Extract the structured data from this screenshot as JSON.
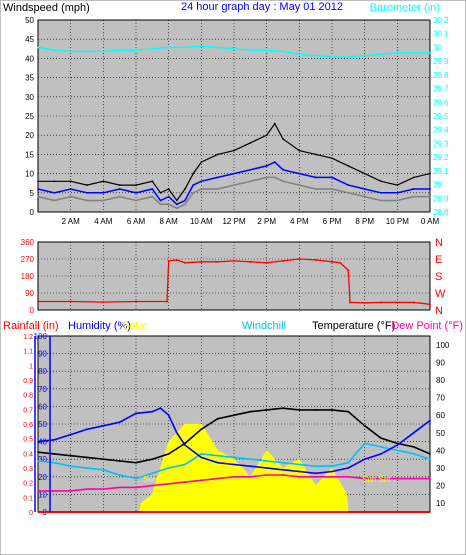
{
  "chart_data": [
    {
      "type": "line",
      "title": "24 hour graph day : May 01 2012",
      "ylabel": "Windspeed (mph)",
      "y2label": "Barometer (in)",
      "ylim": [
        0,
        50
      ],
      "y_ticks": [
        "0",
        "5",
        "10",
        "15",
        "20",
        "25",
        "30",
        "35",
        "40",
        "45",
        "50"
      ],
      "y2lim": [
        28.8,
        30.2
      ],
      "y2_ticks": [
        "28.8",
        "28.9",
        "29",
        "29.1",
        "29.2",
        "29.3",
        "29.4",
        "29.5",
        "29.6",
        "29.7",
        "29.8",
        "29.9",
        "30",
        "30.1",
        "30.2"
      ],
      "xlim": [
        0,
        24
      ],
      "x_ticks": [
        "2 AM",
        "4 AM",
        "6 AM",
        "8 AM",
        "10 AM",
        "12 PM",
        "2 PM",
        "4 PM",
        "6 PM",
        "8 PM",
        "10 PM",
        "0 AM"
      ],
      "grid": true,
      "colors": {
        "gust": "#000000",
        "average": "#0000ff",
        "wind": "#808080",
        "barometer": "#00ffff"
      },
      "series": [
        {
          "name": "gust",
          "axis": "left",
          "x": [
            0,
            1,
            2,
            3,
            4,
            5,
            6,
            7,
            7.5,
            8,
            8.5,
            9,
            9.5,
            10,
            11,
            12,
            13,
            14,
            14.5,
            15,
            16,
            17,
            18,
            19,
            20,
            21,
            22,
            23,
            24
          ],
          "values": [
            8,
            8,
            8,
            7,
            8,
            7,
            7,
            8,
            5,
            6,
            3,
            6,
            10,
            13,
            15,
            16,
            18,
            20,
            23,
            19,
            16,
            15,
            14,
            12,
            10,
            8,
            7,
            9,
            10
          ]
        },
        {
          "name": "average",
          "axis": "left",
          "x": [
            0,
            1,
            2,
            3,
            4,
            5,
            6,
            7,
            7.5,
            8,
            8.5,
            9,
            9.5,
            10,
            11,
            12,
            13,
            14,
            14.5,
            15,
            16,
            17,
            18,
            19,
            20,
            21,
            22,
            23,
            24
          ],
          "values": [
            6,
            5,
            6,
            5,
            5,
            6,
            5,
            6,
            3,
            4,
            2,
            3,
            7,
            8,
            9,
            10,
            11,
            12,
            13,
            11,
            10,
            9,
            9,
            7,
            6,
            5,
            5,
            6,
            6
          ]
        },
        {
          "name": "wind",
          "axis": "left",
          "x": [
            0,
            1,
            2,
            3,
            4,
            5,
            6,
            7,
            7.5,
            8,
            8.5,
            9,
            9.5,
            10,
            11,
            12,
            13,
            14,
            14.5,
            15,
            16,
            17,
            18,
            19,
            20,
            21,
            22,
            23,
            24
          ],
          "values": [
            4,
            3,
            4,
            3,
            3,
            4,
            3,
            4,
            2,
            2,
            1,
            2,
            5,
            6,
            6,
            7,
            8,
            9,
            9,
            8,
            7,
            6,
            6,
            5,
            4,
            3,
            3,
            4,
            4
          ]
        },
        {
          "name": "barometer",
          "axis": "right",
          "x": [
            0,
            1,
            2,
            3,
            4,
            5,
            6,
            7,
            8,
            9,
            10,
            11,
            12,
            13,
            14,
            15,
            16,
            17,
            18,
            19,
            20,
            21,
            22,
            23,
            24
          ],
          "values": [
            30.0,
            29.98,
            29.97,
            29.97,
            29.97,
            29.98,
            29.98,
            29.99,
            30.0,
            30.0,
            30.01,
            30.0,
            29.99,
            29.98,
            29.98,
            29.97,
            29.95,
            29.94,
            29.93,
            29.93,
            29.94,
            29.95,
            29.96,
            29.96,
            29.96
          ]
        }
      ]
    },
    {
      "type": "scatter",
      "ylim": [
        0,
        360
      ],
      "y_ticks": [
        "0",
        "90",
        "180",
        "270",
        "360"
      ],
      "y2_ticks": [
        "N",
        "W",
        "S",
        "E",
        "N"
      ],
      "xlim": [
        0,
        24
      ],
      "grid": true,
      "colors": {
        "direction": "#ff0000"
      },
      "series": [
        {
          "name": "direction",
          "x": [
            0,
            2,
            4,
            6,
            7.9,
            8.0,
            8.5,
            9,
            10,
            11,
            12,
            13,
            14,
            15,
            16,
            17,
            18,
            18.5,
            19,
            19.1,
            20,
            21,
            22,
            23,
            24
          ],
          "values": [
            45,
            45,
            42,
            45,
            45,
            260,
            265,
            250,
            255,
            255,
            260,
            255,
            250,
            260,
            270,
            265,
            255,
            250,
            210,
            40,
            38,
            40,
            40,
            40,
            30
          ]
        }
      ]
    },
    {
      "type": "line",
      "series_labels": [
        "Rainfall (in)",
        "Humidity (%)",
        "Solar",
        "Windchill",
        "Temperature (°F)",
        "Dew Point (°F)"
      ],
      "rain_ticks": [
        "0",
        "0.1",
        "0.2",
        "0.3",
        "0.4",
        "0.5",
        "0.6",
        "0.7",
        "0.8",
        "0.9",
        "1",
        "1.1",
        "1.2"
      ],
      "humidity_ticks": [
        "0",
        "10",
        "20",
        "30",
        "40",
        "50",
        "60",
        "70",
        "80",
        "90",
        "100"
      ],
      "right_ticks": [
        "10",
        "20",
        "30",
        "40",
        "50",
        "60",
        "70",
        "80",
        "90",
        "100"
      ],
      "ylim": [
        0,
        100
      ],
      "y2lim": [
        5,
        105
      ],
      "xlim": [
        0,
        24
      ],
      "annotations": [
        "Sun Rise",
        "Sun Set"
      ],
      "grid": true,
      "colors": {
        "rainfall": "#ff0000",
        "humidity": "#0000ff",
        "solar": "#ffff00",
        "windchill": "#00bfff",
        "temperature": "#000000",
        "dewpoint": "#ff00aa"
      },
      "series": [
        {
          "name": "humidity",
          "axis": "left",
          "x": [
            0,
            1,
            2,
            3,
            4,
            5,
            6,
            7,
            7.5,
            8,
            8.5,
            9,
            10,
            11,
            12,
            13,
            14,
            15,
            16,
            17,
            18,
            19,
            20,
            21,
            22,
            23,
            24
          ],
          "values": [
            40,
            41,
            44,
            47,
            49,
            51,
            56,
            57,
            59,
            55,
            45,
            38,
            31,
            28,
            27,
            26,
            25,
            24,
            23,
            22,
            23,
            25,
            30,
            33,
            38,
            45,
            52
          ]
        },
        {
          "name": "solar",
          "axis": "left",
          "x": [
            0,
            6.2,
            6.3,
            7,
            8,
            9,
            10,
            11,
            12,
            13,
            14,
            15,
            16,
            17,
            18,
            18.9,
            19,
            24
          ],
          "values": [
            0,
            0,
            5,
            10,
            40,
            50,
            50,
            35,
            30,
            20,
            35,
            25,
            30,
            15,
            25,
            10,
            0,
            0
          ]
        },
        {
          "name": "temperature",
          "axis": "right",
          "x": [
            0,
            1,
            2,
            3,
            4,
            5,
            6,
            7,
            8,
            9,
            10,
            11,
            12,
            13,
            14,
            15,
            16,
            17,
            18,
            19,
            20,
            21,
            22,
            23,
            24
          ],
          "values": [
            39,
            38,
            37,
            36,
            35,
            34,
            33,
            35,
            38,
            44,
            52,
            58,
            60,
            62,
            63,
            64,
            63,
            63,
            63,
            62,
            54,
            47,
            44,
            42,
            38
          ]
        },
        {
          "name": "windchill",
          "axis": "right",
          "x": [
            0,
            1,
            2,
            3,
            4,
            5,
            6,
            7,
            8,
            9,
            10,
            11,
            12,
            13,
            14,
            15,
            16,
            17,
            18,
            19,
            20,
            21,
            22,
            23,
            24
          ],
          "values": [
            34,
            33,
            31,
            30,
            29,
            26,
            24,
            27,
            30,
            32,
            38,
            37,
            36,
            35,
            34,
            33,
            32,
            31,
            31,
            33,
            44,
            42,
            40,
            38,
            35
          ]
        },
        {
          "name": "dewpoint",
          "axis": "right",
          "x": [
            0,
            1,
            2,
            3,
            4,
            5,
            6,
            7,
            8,
            9,
            10,
            11,
            12,
            13,
            14,
            15,
            16,
            17,
            18,
            19,
            20,
            21,
            22,
            23,
            24
          ],
          "values": [
            17,
            17,
            17,
            18,
            18,
            19,
            19,
            20,
            21,
            22,
            23,
            24,
            25,
            25,
            26,
            26,
            25,
            25,
            25,
            25,
            24,
            24,
            24,
            24,
            24
          ]
        },
        {
          "name": "rainfall",
          "axis": "left",
          "x": [
            0,
            24
          ],
          "values": [
            0,
            0
          ]
        }
      ]
    }
  ]
}
